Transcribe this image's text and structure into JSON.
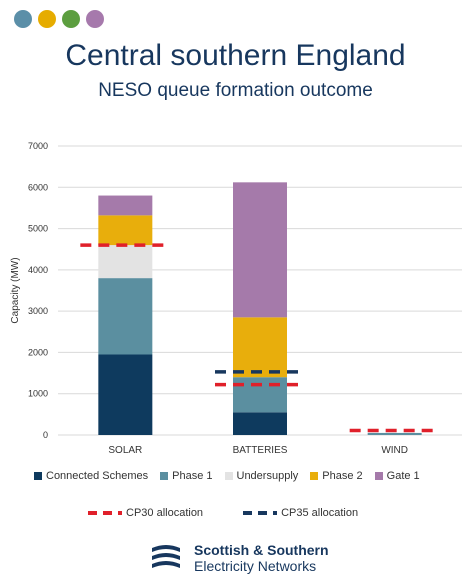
{
  "header": {
    "title": "Central southern England",
    "subtitle": "NESO queue formation outcome",
    "dots": [
      "#5b8fa8",
      "#e6ac00",
      "#5c9e3f",
      "#a679ac"
    ]
  },
  "chart_data": {
    "type": "bar",
    "stacked": true,
    "categories": [
      "SOLAR",
      "BATTERIES",
      "WIND"
    ],
    "ylabel": "Capacity (MW)",
    "ylim": [
      0,
      7000
    ],
    "yticks": [
      0,
      1000,
      2000,
      3000,
      4000,
      5000,
      6000,
      7000
    ],
    "grid": true,
    "series": [
      {
        "name": "Connected Schemes",
        "color": "#0e3a5e",
        "values": [
          1950,
          550,
          0
        ]
      },
      {
        "name": "Phase 1",
        "color": "#5b8fa0",
        "values": [
          1850,
          850,
          50
        ]
      },
      {
        "name": "Undersupply",
        "color": "#e3e3e3",
        "values": [
          800,
          0,
          0
        ]
      },
      {
        "name": "Phase 2",
        "color": "#e8ae0c",
        "values": [
          720,
          1450,
          0
        ]
      },
      {
        "name": "Gate 1",
        "color": "#a57aaa",
        "values": [
          480,
          3270,
          0
        ]
      }
    ],
    "allocations": [
      {
        "name": "CP30 allocation",
        "color": "#e0202a",
        "values": [
          4600,
          1220,
          110
        ]
      },
      {
        "name": "CP35 allocation",
        "color": "#17375e",
        "values": [
          null,
          1530,
          null
        ]
      }
    ]
  },
  "footer": {
    "brand_line1": "Scottish & Southern",
    "brand_line2": "Electricity Networks"
  }
}
